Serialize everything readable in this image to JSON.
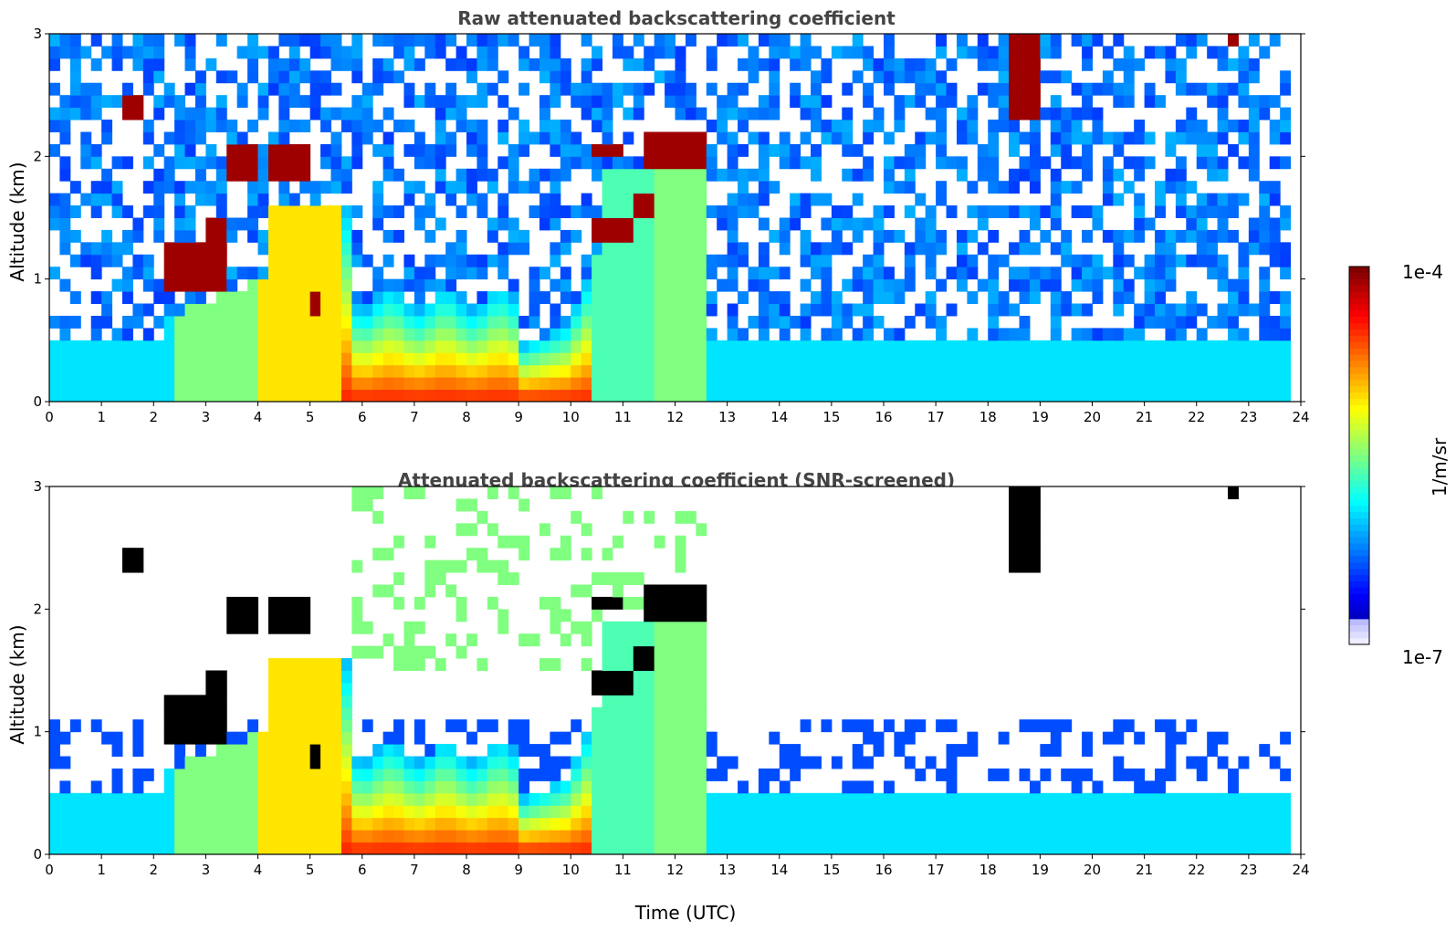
{
  "chart_data": [
    {
      "type": "heatmap",
      "title": "Raw attenuated backscattering coefficient",
      "ylabel": "Altitude (km)",
      "xlabel": "",
      "x_ticks": [
        0,
        1,
        2,
        3,
        4,
        5,
        6,
        7,
        8,
        9,
        10,
        11,
        12,
        13,
        14,
        15,
        16,
        17,
        18,
        19,
        20,
        21,
        22,
        23,
        24
      ],
      "y_ticks": [
        0,
        1,
        2,
        3
      ],
      "xlim": [
        0,
        24
      ],
      "ylim": [
        0,
        3
      ],
      "screened": false
    },
    {
      "type": "heatmap",
      "title": "Attenuated backscattering coefficient (SNR-screened)",
      "ylabel": "Altitude (km)",
      "xlabel": "Time (UTC)",
      "x_ticks": [
        0,
        1,
        2,
        3,
        4,
        5,
        6,
        7,
        8,
        9,
        10,
        11,
        12,
        13,
        14,
        15,
        16,
        17,
        18,
        19,
        20,
        21,
        22,
        23,
        24
      ],
      "y_ticks": [
        0,
        1,
        2,
        3
      ],
      "xlim": [
        0,
        24
      ],
      "ylim": [
        0,
        3
      ],
      "screened": true
    }
  ],
  "colorbar": {
    "label": "1/m/sr",
    "max_label": "1e-4",
    "min_label": "1e-7",
    "colormap": "jet",
    "scale": "log"
  }
}
